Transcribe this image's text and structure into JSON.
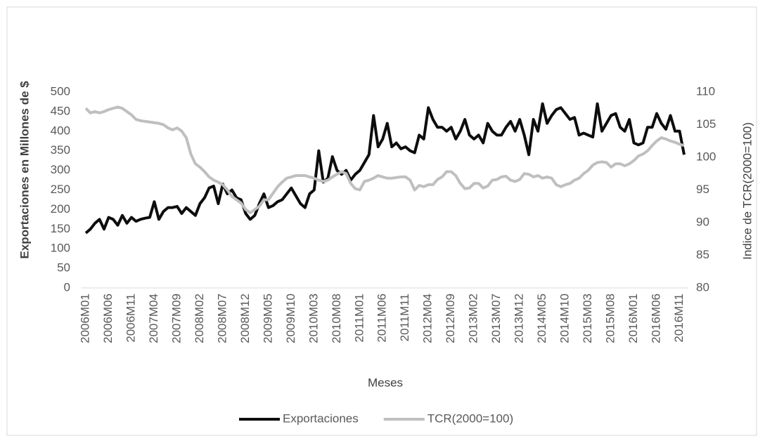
{
  "chart_data": {
    "type": "line",
    "x_label": "Meses",
    "y_label": "Exportaciones en Millones de $",
    "y2_label": "Indice de TCR(2000=100)",
    "categories": [
      "2006M01",
      null,
      null,
      null,
      null,
      "2006M06",
      null,
      null,
      null,
      null,
      "2006M11",
      null,
      null,
      null,
      null,
      "2007M04",
      null,
      null,
      null,
      null,
      "2007M09",
      null,
      null,
      null,
      null,
      "2008M02",
      null,
      null,
      null,
      null,
      "2008M07",
      null,
      null,
      null,
      null,
      "2008M12",
      null,
      null,
      null,
      null,
      "2009M05",
      null,
      null,
      null,
      null,
      "2009M10",
      null,
      null,
      null,
      null,
      "2010M03",
      null,
      null,
      null,
      null,
      "2010M08",
      null,
      null,
      null,
      null,
      "2011M01",
      null,
      null,
      null,
      null,
      "2011M06",
      null,
      null,
      null,
      null,
      "2011M11",
      null,
      null,
      null,
      null,
      "2012M04",
      null,
      null,
      null,
      null,
      "2012M09",
      null,
      null,
      null,
      null,
      "2013M02",
      null,
      null,
      null,
      null,
      "2013M07",
      null,
      null,
      null,
      null,
      "2013M12",
      null,
      null,
      null,
      null,
      "2014M05",
      null,
      null,
      null,
      null,
      "2014M10",
      null,
      null,
      null,
      null,
      "2015M03",
      null,
      null,
      null,
      null,
      "2015M08",
      null,
      null,
      null,
      null,
      "2016M01",
      null,
      null,
      null,
      null,
      "2016M06",
      null,
      null,
      null,
      null,
      "2016M11",
      null
    ],
    "series": [
      {
        "name": "Exportaciones",
        "color": "#0d0d0d",
        "axis": "y",
        "values": [
          140,
          150,
          165,
          175,
          150,
          180,
          175,
          160,
          185,
          165,
          180,
          170,
          175,
          178,
          180,
          220,
          175,
          195,
          205,
          205,
          208,
          190,
          205,
          195,
          185,
          215,
          230,
          255,
          260,
          215,
          265,
          240,
          250,
          230,
          225,
          190,
          175,
          185,
          215,
          240,
          205,
          210,
          220,
          225,
          240,
          255,
          235,
          215,
          205,
          240,
          250,
          350,
          270,
          280,
          335,
          300,
          290,
          300,
          275,
          290,
          300,
          320,
          340,
          440,
          360,
          380,
          420,
          360,
          370,
          355,
          360,
          350,
          345,
          390,
          380,
          460,
          430,
          410,
          410,
          400,
          410,
          380,
          400,
          430,
          390,
          380,
          390,
          370,
          420,
          400,
          390,
          390,
          410,
          425,
          400,
          430,
          390,
          340,
          430,
          400,
          470,
          420,
          440,
          455,
          460,
          445,
          430,
          435,
          390,
          395,
          390,
          385,
          470,
          400,
          420,
          440,
          445,
          410,
          400,
          430,
          370,
          365,
          370,
          410,
          410,
          445,
          420,
          405,
          440,
          400,
          400,
          340
        ]
      },
      {
        "name": "TCR(2000=100)",
        "color": "#bfbfbf",
        "axis": "y2",
        "values": [
          107.5,
          106.8,
          107,
          106.8,
          107,
          107.3,
          107.5,
          107.7,
          107.5,
          107,
          106.5,
          105.8,
          105.6,
          105.5,
          105.4,
          105.3,
          105.2,
          105,
          104.5,
          104.2,
          104.5,
          104,
          103,
          100.5,
          99,
          98.5,
          97.8,
          97,
          96.5,
          96.2,
          95.8,
          95,
          94,
          93.5,
          93,
          92,
          91.5,
          92,
          92.5,
          93.5,
          93.5,
          94.5,
          95.5,
          96.2,
          96.8,
          97,
          97.2,
          97.2,
          97.2,
          97,
          96.8,
          96.5,
          96.3,
          96.5,
          97,
          97.4,
          97.8,
          97.5,
          96,
          95.2,
          95,
          96.3,
          96.5,
          96.8,
          97.2,
          97,
          96.8,
          96.8,
          96.9,
          97,
          97,
          96.5,
          95,
          95.7,
          95.5,
          95.8,
          95.8,
          96.6,
          97,
          97.8,
          97.8,
          97.2,
          96,
          95.2,
          95.3,
          96,
          96,
          95.3,
          95.6,
          96.5,
          96.6,
          97,
          97.1,
          96.5,
          96.3,
          96.6,
          97.5,
          97.4,
          97,
          97.2,
          96.8,
          97,
          96.8,
          95.8,
          95.5,
          95.8,
          96,
          96.5,
          96.8,
          97.5,
          98,
          98.8,
          99.2,
          99.3,
          99.2,
          98.5,
          99,
          99,
          98.7,
          99,
          99.5,
          100.2,
          100.5,
          101,
          101.8,
          102.5,
          103,
          102.8,
          102.5,
          102.3,
          102,
          101.8
        ]
      }
    ],
    "ylim": [
      0,
      500
    ],
    "yticks": [
      0,
      50,
      100,
      150,
      200,
      250,
      300,
      350,
      400,
      450,
      500
    ],
    "y2lim": [
      80,
      110
    ],
    "y2ticks": [
      80,
      85,
      90,
      95,
      100,
      105,
      110
    ],
    "grid": false,
    "legend": "bottom"
  }
}
